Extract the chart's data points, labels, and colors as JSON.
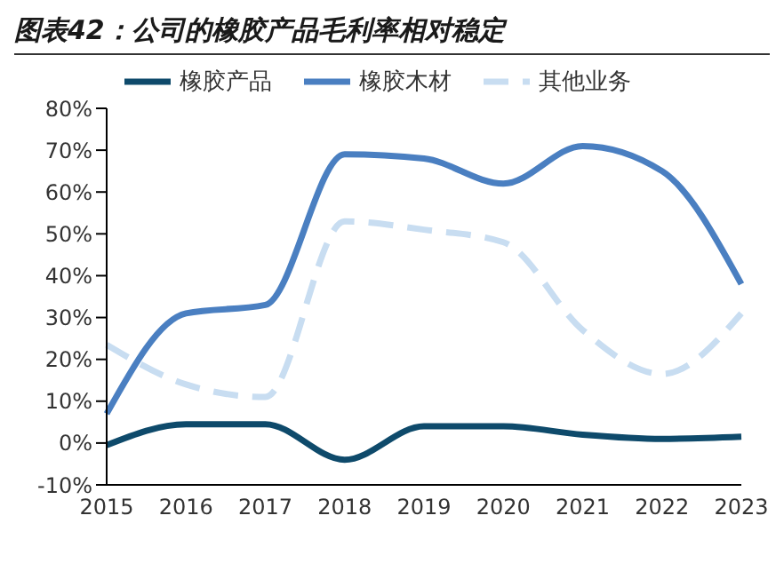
{
  "chart_data": {
    "type": "line",
    "title": "图表42：公司的橡胶产品毛利率相对稳定",
    "categories": [
      "2015",
      "2016",
      "2017",
      "2018",
      "2019",
      "2020",
      "2021",
      "2022",
      "2023"
    ],
    "series": [
      {
        "name": "橡胶产品",
        "color": "#0e4a6b",
        "line_style": "solid",
        "values": [
          -0.5,
          4.5,
          4.5,
          -4,
          4,
          4,
          2,
          1,
          1.5
        ]
      },
      {
        "name": "橡胶木材",
        "color": "#4a7fc1",
        "line_style": "solid",
        "values": [
          7,
          31,
          33,
          69,
          68,
          62,
          71,
          65,
          38
        ]
      },
      {
        "name": "其他业务",
        "color": "#c8ddf1",
        "line_style": "dashed",
        "values": [
          23.5,
          14,
          11,
          53,
          51,
          48,
          27,
          16.5,
          31
        ]
      }
    ],
    "ylim": [
      -10,
      80
    ],
    "yticks": [
      {
        "value": -10,
        "label": "-10%"
      },
      {
        "value": 0,
        "label": "0%"
      },
      {
        "value": 10,
        "label": "10%"
      },
      {
        "value": 20,
        "label": "20%"
      },
      {
        "value": 30,
        "label": "30%"
      },
      {
        "value": 40,
        "label": "40%"
      },
      {
        "value": 50,
        "label": "50%"
      },
      {
        "value": 60,
        "label": "60%"
      },
      {
        "value": 70,
        "label": "70%"
      },
      {
        "value": 80,
        "label": "80%"
      }
    ],
    "grid": false,
    "legend": "top",
    "marker": "none"
  }
}
